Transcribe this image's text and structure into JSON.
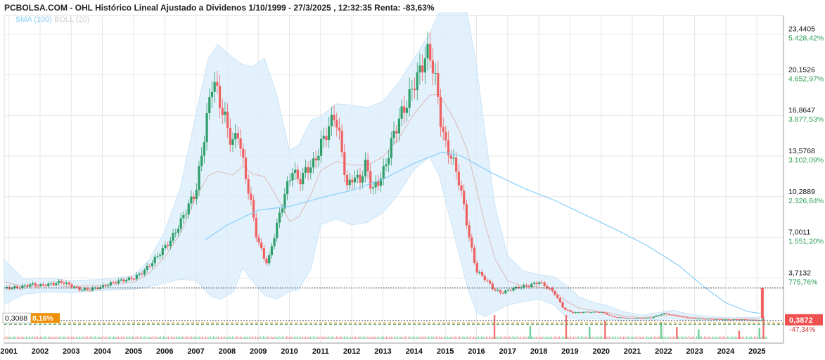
{
  "title": "PCBOLSA.COM - OHL Histórico Lineal Ajustado a Dividenos 1/10/1999 - 27/3/2025 , 12:32:35 Renta: -83,63%",
  "legend": {
    "sma": "SMA (100)",
    "boll": "BOLL (20)"
  },
  "colors": {
    "up": "#2e9e6b",
    "down": "#f06060",
    "sma": "#87cefa",
    "boll_fill": "#d8ecfa",
    "boll_mid": "#e0b8b8",
    "grid": "#e6e6e6",
    "pct_text": "#2e9e56",
    "last_price_bg": "#f05050",
    "start_pct_bg": "#f0900a"
  },
  "chart_data": {
    "type": "candlestick",
    "title": "PCBOLSA.COM - OHL Histórico Lineal Ajustado a Dividenos 1/10/1999 - 27/3/2025 , 12:32:35 Renta: -83,63%",
    "x_axis_labels": [
      "2001",
      "2002",
      "2003",
      "2004",
      "2005",
      "2006",
      "2007",
      "2008",
      "2009",
      "2010",
      "2011",
      "2012",
      "2013",
      "2014",
      "2015",
      "2016",
      "2017",
      "2018",
      "2019",
      "2020",
      "2021",
      "2022",
      "2023",
      "2024",
      "2025"
    ],
    "xlim": [
      2000.85,
      2025.85
    ],
    "ylim": [
      0.15,
      24.5
    ],
    "y_ticks": [
      {
        "price": 23.4405,
        "price_label": "23,4405",
        "pct_label": "5.428,42%"
      },
      {
        "price": 20.1526,
        "price_label": "20,1526",
        "pct_label": "4.652,97%"
      },
      {
        "price": 16.8647,
        "price_label": "16,8647",
        "pct_label": "3.877,53%"
      },
      {
        "price": 13.5768,
        "price_label": "13,5768",
        "pct_label": "3.102,09%"
      },
      {
        "price": 10.2889,
        "price_label": "10,2889",
        "pct_label": "2.326,64%"
      },
      {
        "price": 7.0011,
        "price_label": "7,0011",
        "pct_label": "1.551,20%"
      },
      {
        "price": 3.7132,
        "price_label": "3,7132",
        "pct_label": "775,76%"
      }
    ],
    "start_price": {
      "value": 0.3088,
      "label": "0,3088",
      "pct_label": "8,16%"
    },
    "last_price": {
      "value": 0.3872,
      "label": "0,3872",
      "pct_label": "-47,34%"
    },
    "reference_line": 2.9,
    "close_series": [
      {
        "x": 2000.85,
        "y": 2.9
      },
      {
        "x": 2001.3,
        "y": 2.95
      },
      {
        "x": 2001.7,
        "y": 3.2
      },
      {
        "x": 2002.0,
        "y": 3.1
      },
      {
        "x": 2002.4,
        "y": 3.25
      },
      {
        "x": 2002.7,
        "y": 3.4
      },
      {
        "x": 2003.0,
        "y": 3.1
      },
      {
        "x": 2003.3,
        "y": 2.75
      },
      {
        "x": 2003.6,
        "y": 2.8
      },
      {
        "x": 2004.0,
        "y": 3.0
      },
      {
        "x": 2004.4,
        "y": 3.4
      },
      {
        "x": 2004.8,
        "y": 3.6
      },
      {
        "x": 2005.0,
        "y": 3.7
      },
      {
        "x": 2005.3,
        "y": 4.2
      },
      {
        "x": 2005.6,
        "y": 5.0
      },
      {
        "x": 2005.9,
        "y": 5.9
      },
      {
        "x": 2006.2,
        "y": 6.8
      },
      {
        "x": 2006.5,
        "y": 8.2
      },
      {
        "x": 2006.8,
        "y": 9.8
      },
      {
        "x": 2007.0,
        "y": 10.7
      },
      {
        "x": 2007.2,
        "y": 14.0
      },
      {
        "x": 2007.4,
        "y": 17.5
      },
      {
        "x": 2007.55,
        "y": 20.0
      },
      {
        "x": 2007.75,
        "y": 18.0
      },
      {
        "x": 2007.95,
        "y": 16.5
      },
      {
        "x": 2008.15,
        "y": 14.5
      },
      {
        "x": 2008.35,
        "y": 15.5
      },
      {
        "x": 2008.55,
        "y": 12.5
      },
      {
        "x": 2008.75,
        "y": 10.0
      },
      {
        "x": 2008.95,
        "y": 7.0
      },
      {
        "x": 2009.15,
        "y": 5.6
      },
      {
        "x": 2009.3,
        "y": 4.8
      },
      {
        "x": 2009.45,
        "y": 6.5
      },
      {
        "x": 2009.65,
        "y": 8.5
      },
      {
        "x": 2009.85,
        "y": 10.5
      },
      {
        "x": 2010.1,
        "y": 12.5
      },
      {
        "x": 2010.3,
        "y": 11.5
      },
      {
        "x": 2010.55,
        "y": 12.5
      },
      {
        "x": 2010.8,
        "y": 13.0
      },
      {
        "x": 2011.0,
        "y": 14.5
      },
      {
        "x": 2011.2,
        "y": 15.5
      },
      {
        "x": 2011.45,
        "y": 17.0
      },
      {
        "x": 2011.65,
        "y": 14.5
      },
      {
        "x": 2011.85,
        "y": 11.0
      },
      {
        "x": 2012.05,
        "y": 12.0
      },
      {
        "x": 2012.25,
        "y": 11.5
      },
      {
        "x": 2012.45,
        "y": 13.0
      },
      {
        "x": 2012.65,
        "y": 10.8
      },
      {
        "x": 2012.85,
        "y": 11.5
      },
      {
        "x": 2013.05,
        "y": 12.5
      },
      {
        "x": 2013.3,
        "y": 15.0
      },
      {
        "x": 2013.55,
        "y": 16.8
      },
      {
        "x": 2013.8,
        "y": 18.0
      },
      {
        "x": 2014.0,
        "y": 19.5
      },
      {
        "x": 2014.2,
        "y": 20.5
      },
      {
        "x": 2014.4,
        "y": 22.0
      },
      {
        "x": 2014.55,
        "y": 21.5
      },
      {
        "x": 2014.7,
        "y": 19.5
      },
      {
        "x": 2014.85,
        "y": 16.5
      },
      {
        "x": 2015.0,
        "y": 14.5
      },
      {
        "x": 2015.2,
        "y": 13.5
      },
      {
        "x": 2015.4,
        "y": 12.0
      },
      {
        "x": 2015.6,
        "y": 9.5
      },
      {
        "x": 2015.8,
        "y": 6.5
      },
      {
        "x": 2016.0,
        "y": 4.3
      },
      {
        "x": 2016.3,
        "y": 3.6
      },
      {
        "x": 2016.55,
        "y": 2.8
      },
      {
        "x": 2016.8,
        "y": 2.5
      },
      {
        "x": 2017.1,
        "y": 2.8
      },
      {
        "x": 2017.4,
        "y": 3.0
      },
      {
        "x": 2017.7,
        "y": 3.1
      },
      {
        "x": 2018.0,
        "y": 3.4
      },
      {
        "x": 2018.25,
        "y": 3.0
      },
      {
        "x": 2018.5,
        "y": 2.5
      },
      {
        "x": 2018.8,
        "y": 1.2
      },
      {
        "x": 2019.1,
        "y": 0.9
      },
      {
        "x": 2019.5,
        "y": 0.95
      },
      {
        "x": 2020.0,
        "y": 0.95
      },
      {
        "x": 2020.4,
        "y": 0.55
      },
      {
        "x": 2021.0,
        "y": 0.45
      },
      {
        "x": 2021.6,
        "y": 0.5
      },
      {
        "x": 2022.0,
        "y": 0.85
      },
      {
        "x": 2022.5,
        "y": 0.6
      },
      {
        "x": 2023.0,
        "y": 0.42
      },
      {
        "x": 2023.5,
        "y": 0.4
      },
      {
        "x": 2024.0,
        "y": 0.35
      },
      {
        "x": 2024.5,
        "y": 0.36
      },
      {
        "x": 2025.1,
        "y": 0.3
      },
      {
        "x": 2025.2,
        "y": 0.39
      }
    ],
    "sma_100": [
      {
        "x": 2007.3,
        "y": 6.8
      },
      {
        "x": 2008.0,
        "y": 8.0
      },
      {
        "x": 2009.0,
        "y": 9.2
      },
      {
        "x": 2010.0,
        "y": 9.5
      },
      {
        "x": 2011.0,
        "y": 10.2
      },
      {
        "x": 2012.0,
        "y": 10.8
      },
      {
        "x": 2013.0,
        "y": 11.7
      },
      {
        "x": 2014.0,
        "y": 13.0
      },
      {
        "x": 2014.9,
        "y": 13.9
      },
      {
        "x": 2015.5,
        "y": 13.6
      },
      {
        "x": 2016.5,
        "y": 12.2
      },
      {
        "x": 2017.5,
        "y": 11.0
      },
      {
        "x": 2018.5,
        "y": 10.0
      },
      {
        "x": 2019.5,
        "y": 8.8
      },
      {
        "x": 2020.5,
        "y": 7.6
      },
      {
        "x": 2021.5,
        "y": 6.3
      },
      {
        "x": 2022.5,
        "y": 4.7
      },
      {
        "x": 2023.3,
        "y": 3.0
      },
      {
        "x": 2024.0,
        "y": 1.7
      },
      {
        "x": 2024.7,
        "y": 1.0
      },
      {
        "x": 2025.1,
        "y": 0.85
      }
    ],
    "boll_upper": [
      {
        "x": 2000.85,
        "y": 5.2
      },
      {
        "x": 2001.5,
        "y": 3.6
      },
      {
        "x": 2002.3,
        "y": 3.7
      },
      {
        "x": 2003.0,
        "y": 3.5
      },
      {
        "x": 2004.0,
        "y": 3.6
      },
      {
        "x": 2005.0,
        "y": 3.9
      },
      {
        "x": 2005.5,
        "y": 5.2
      },
      {
        "x": 2006.0,
        "y": 7.5
      },
      {
        "x": 2006.5,
        "y": 11.0
      },
      {
        "x": 2007.0,
        "y": 17.0
      },
      {
        "x": 2007.4,
        "y": 21.5
      },
      {
        "x": 2007.7,
        "y": 22.6
      },
      {
        "x": 2008.2,
        "y": 21.5
      },
      {
        "x": 2008.5,
        "y": 21.0
      },
      {
        "x": 2008.8,
        "y": 20.8
      },
      {
        "x": 2009.2,
        "y": 21.5
      },
      {
        "x": 2009.6,
        "y": 18.5
      },
      {
        "x": 2010.0,
        "y": 14.0
      },
      {
        "x": 2010.3,
        "y": 14.5
      },
      {
        "x": 2010.7,
        "y": 16.5
      },
      {
        "x": 2011.0,
        "y": 16.8
      },
      {
        "x": 2011.5,
        "y": 17.8
      },
      {
        "x": 2012.0,
        "y": 17.7
      },
      {
        "x": 2012.5,
        "y": 17.5
      },
      {
        "x": 2013.0,
        "y": 18.0
      },
      {
        "x": 2013.5,
        "y": 19.5
      },
      {
        "x": 2014.0,
        "y": 21.5
      },
      {
        "x": 2014.5,
        "y": 23.5
      },
      {
        "x": 2014.8,
        "y": 25.2
      },
      {
        "x": 2015.3,
        "y": 26.0
      },
      {
        "x": 2015.7,
        "y": 25.2
      },
      {
        "x": 2016.0,
        "y": 21.0
      },
      {
        "x": 2016.3,
        "y": 15.0
      },
      {
        "x": 2016.6,
        "y": 9.5
      },
      {
        "x": 2017.0,
        "y": 5.5
      },
      {
        "x": 2017.5,
        "y": 4.3
      },
      {
        "x": 2018.0,
        "y": 4.0
      },
      {
        "x": 2018.5,
        "y": 3.8
      },
      {
        "x": 2018.9,
        "y": 3.1
      },
      {
        "x": 2019.3,
        "y": 2.2
      },
      {
        "x": 2019.8,
        "y": 1.7
      },
      {
        "x": 2020.2,
        "y": 1.5
      },
      {
        "x": 2020.7,
        "y": 1.0
      },
      {
        "x": 2021.3,
        "y": 0.7
      },
      {
        "x": 2021.8,
        "y": 0.9
      },
      {
        "x": 2022.3,
        "y": 1.1
      },
      {
        "x": 2022.8,
        "y": 0.8
      },
      {
        "x": 2023.5,
        "y": 0.6
      },
      {
        "x": 2024.2,
        "y": 0.5
      },
      {
        "x": 2025.1,
        "y": 0.55
      }
    ],
    "boll_lower": [
      {
        "x": 2000.85,
        "y": 1.6
      },
      {
        "x": 2001.5,
        "y": 2.4
      },
      {
        "x": 2002.3,
        "y": 2.6
      },
      {
        "x": 2003.0,
        "y": 2.5
      },
      {
        "x": 2004.0,
        "y": 2.7
      },
      {
        "x": 2005.0,
        "y": 2.8
      },
      {
        "x": 2005.5,
        "y": 3.0
      },
      {
        "x": 2006.0,
        "y": 3.3
      },
      {
        "x": 2006.5,
        "y": 3.6
      },
      {
        "x": 2007.0,
        "y": 3.5
      },
      {
        "x": 2007.5,
        "y": 2.2
      },
      {
        "x": 2007.8,
        "y": 2.0
      },
      {
        "x": 2008.2,
        "y": 2.6
      },
      {
        "x": 2008.5,
        "y": 4.5
      },
      {
        "x": 2008.8,
        "y": 3.5
      },
      {
        "x": 2009.2,
        "y": 2.3
      },
      {
        "x": 2009.6,
        "y": 2.0
      },
      {
        "x": 2010.0,
        "y": 2.6
      },
      {
        "x": 2010.3,
        "y": 2.8
      },
      {
        "x": 2010.7,
        "y": 4.5
      },
      {
        "x": 2011.0,
        "y": 8.0
      },
      {
        "x": 2011.5,
        "y": 8.5
      },
      {
        "x": 2012.0,
        "y": 8.0
      },
      {
        "x": 2012.5,
        "y": 8.2
      },
      {
        "x": 2013.0,
        "y": 9.0
      },
      {
        "x": 2013.5,
        "y": 10.5
      },
      {
        "x": 2014.0,
        "y": 12.5
      },
      {
        "x": 2014.5,
        "y": 13.5
      },
      {
        "x": 2014.8,
        "y": 12.0
      },
      {
        "x": 2015.3,
        "y": 7.0
      },
      {
        "x": 2015.7,
        "y": 3.0
      },
      {
        "x": 2016.0,
        "y": 0.9
      },
      {
        "x": 2016.3,
        "y": 0.6
      },
      {
        "x": 2016.6,
        "y": 1.0
      },
      {
        "x": 2017.0,
        "y": 1.5
      },
      {
        "x": 2017.5,
        "y": 1.8
      },
      {
        "x": 2018.0,
        "y": 2.0
      },
      {
        "x": 2018.5,
        "y": 1.5
      },
      {
        "x": 2018.9,
        "y": 0.5
      },
      {
        "x": 2019.3,
        "y": 0.35
      },
      {
        "x": 2019.8,
        "y": 0.4
      },
      {
        "x": 2020.2,
        "y": 0.35
      },
      {
        "x": 2020.7,
        "y": 0.3
      },
      {
        "x": 2021.3,
        "y": 0.3
      },
      {
        "x": 2021.8,
        "y": 0.35
      },
      {
        "x": 2022.3,
        "y": 0.4
      },
      {
        "x": 2022.8,
        "y": 0.3
      },
      {
        "x": 2023.5,
        "y": 0.3
      },
      {
        "x": 2024.2,
        "y": 0.25
      },
      {
        "x": 2025.1,
        "y": 0.25
      }
    ],
    "volume_spikes": [
      {
        "x": 2016.55,
        "v": 1.0
      },
      {
        "x": 2017.7,
        "v": 0.55
      },
      {
        "x": 2018.85,
        "v": 1.0
      },
      {
        "x": 2019.6,
        "v": 0.5
      },
      {
        "x": 2020.1,
        "v": 0.75
      },
      {
        "x": 2021.9,
        "v": 0.7
      },
      {
        "x": 2022.4,
        "v": 0.5
      },
      {
        "x": 2023.1,
        "v": 0.4
      },
      {
        "x": 2024.4,
        "v": 0.35
      },
      {
        "x": 2025.05,
        "v": 0.45
      },
      {
        "x": 2025.18,
        "v": 0.95
      }
    ],
    "grid": true
  }
}
